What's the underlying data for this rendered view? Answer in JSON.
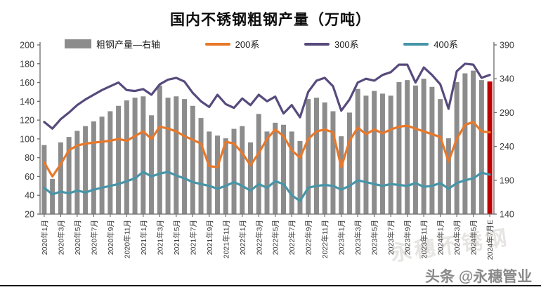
{
  "title": "国内不锈钢粗钢产量（万吨）",
  "legend": {
    "items": [
      {
        "label": "粗钢产量—右轴",
        "type": "bar",
        "color": "#8C8C8C"
      },
      {
        "label": "200系",
        "type": "line",
        "color": "#E8782A"
      },
      {
        "label": "300系",
        "type": "line",
        "color": "#574A7C"
      },
      {
        "label": "400系",
        "type": "line",
        "color": "#4795A8"
      }
    ]
  },
  "watermarks": {
    "faint": "永穗不锈钢",
    "byline": "头条 @永穗管业"
  },
  "chart_data": {
    "type": "combo-bar-line",
    "title": "国内不锈钢粗钢产量（万吨）",
    "x_tick_every": 2,
    "grid": false,
    "months": [
      "2020年1月",
      "2020年2月",
      "2020年3月",
      "2020年4月",
      "2020年5月",
      "2020年6月",
      "2020年7月",
      "2020年8月",
      "2020年9月",
      "2020年10月",
      "2020年11月",
      "2020年12月",
      "2021年1月",
      "2021年2月",
      "2021年3月",
      "2021年4月",
      "2021年5月",
      "2021年6月",
      "2021年7月",
      "2021年8月",
      "2021年9月",
      "2021年10月",
      "2021年11月",
      "2021年12月",
      "2022年1月",
      "2022年2月",
      "2022年3月",
      "2022年4月",
      "2022年5月",
      "2022年6月",
      "2022年7月",
      "2022年8月",
      "2022年9月",
      "2022年10月",
      "2022年11月",
      "2022年12月",
      "2023年1月",
      "2023年2月",
      "2023年3月",
      "2023年4月",
      "2023年5月",
      "2023年6月",
      "2023年7月",
      "2023年8月",
      "2023年9月",
      "2023年10月",
      "2023年11月",
      "2023年12月",
      "2024年1月",
      "2024年2月",
      "2024年3月",
      "2024年4月",
      "2024年5月",
      "2024年6月",
      "2024年7月E"
    ],
    "left_axis": {
      "min": 20,
      "max": 200,
      "ticks": [
        20,
        40,
        60,
        80,
        100,
        120,
        140,
        160,
        180,
        200
      ]
    },
    "right_axis": {
      "min": 140,
      "max": 390,
      "ticks": [
        140,
        190,
        240,
        290,
        340,
        390
      ]
    },
    "bars": {
      "name": "粗钢产量—右轴",
      "axis": "right",
      "color": "#8C8C8C",
      "last_color": "#C00000",
      "values": [
        242,
        192,
        246,
        254,
        263,
        270,
        277,
        284,
        292,
        300,
        308,
        312,
        314,
        286,
        330,
        312,
        314,
        310,
        300,
        282,
        262,
        256,
        252,
        266,
        270,
        246,
        288,
        262,
        275,
        272,
        262,
        248,
        310,
        312,
        305,
        292,
        255,
        290,
        325,
        315,
        322,
        318,
        315,
        335,
        338,
        330,
        340,
        328,
        310,
        252,
        335,
        348,
        352,
        338,
        336
      ]
    },
    "series": [
      {
        "name": "200系",
        "axis": "left",
        "color": "#E8782A",
        "values": [
          75,
          60,
          73,
          88,
          93,
          95,
          96,
          97,
          98,
          100,
          98,
          103,
          108,
          100,
          113,
          111,
          108,
          103,
          99,
          95,
          71,
          70,
          97,
          95,
          85,
          72,
          85,
          100,
          110,
          103,
          88,
          80,
          100,
          108,
          110,
          107,
          70,
          98,
          112,
          105,
          110,
          106,
          110,
          113,
          114,
          111,
          108,
          105,
          102,
          76,
          100,
          115,
          118,
          108,
          107
        ]
      },
      {
        "name": "300系",
        "axis": "left",
        "color": "#574A7C",
        "values": [
          118,
          111,
          121,
          128,
          136,
          142,
          147,
          152,
          156,
          160,
          152,
          151,
          153,
          147,
          158,
          163,
          165,
          161,
          149,
          140,
          134,
          147,
          137,
          133,
          143,
          136,
          147,
          140,
          145,
          127,
          136,
          123,
          150,
          162,
          165,
          156,
          130,
          142,
          160,
          164,
          162,
          168,
          171,
          179,
          179,
          160,
          176,
          168,
          158,
          132,
          172,
          180,
          179,
          165,
          168
        ]
      },
      {
        "name": "400系",
        "axis": "left",
        "color": "#4795A8",
        "values": [
          48,
          41,
          44,
          42,
          45,
          43,
          46,
          48,
          50,
          52,
          55,
          58,
          65,
          60,
          63,
          65,
          61,
          58,
          54,
          52,
          50,
          47,
          50,
          54,
          50,
          45,
          52,
          48,
          55,
          52,
          40,
          34,
          48,
          50,
          51,
          50,
          46,
          50,
          56,
          54,
          52,
          50,
          52,
          51,
          50,
          53,
          49,
          50,
          53,
          47,
          53,
          56,
          58,
          64,
          62
        ]
      }
    ]
  }
}
